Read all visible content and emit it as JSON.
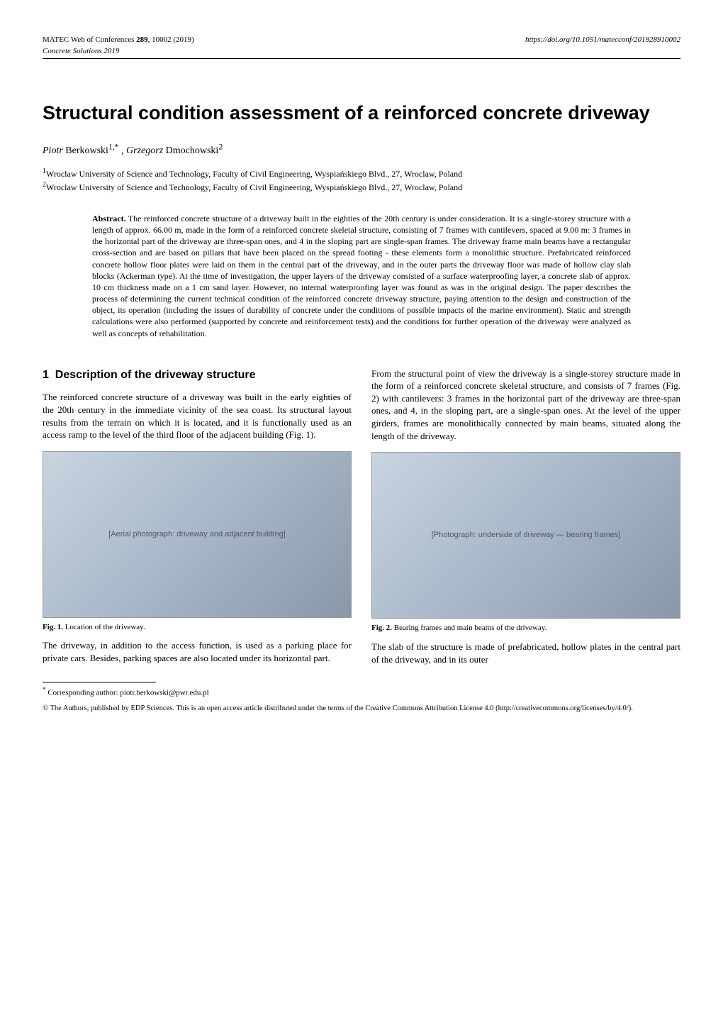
{
  "header": {
    "journal": "MATEC Web of Conferences",
    "volume": "289",
    "article_id": "10002",
    "year": "(2019)",
    "conference_line": "Concrete Solutions 2019",
    "doi": "https://doi.org/10.1051/matecconf/201928910002"
  },
  "title": "Structural condition assessment of a reinforced concrete driveway",
  "authors": [
    {
      "first": "Piotr",
      "last": "Berkowski",
      "sup": "1,*"
    },
    {
      "first": "Grzegorz",
      "last": "Dmochowski",
      "sup": "2"
    }
  ],
  "affiliations": [
    "Wroclaw University of Science and Technology, Faculty of Civil Engineering, Wyspiańskiego Blvd., 27, Wroclaw, Poland",
    "Wroclaw University of Science and Technology, Faculty of Civil Engineering, Wyspiańskiego Blvd., 27, Wroclaw, Poland"
  ],
  "abstract": {
    "label": "Abstract.",
    "text": "The reinforced concrete structure of a driveway built in the eighties of the 20th century is under consideration. It is a single-storey structure with a length of approx. 66.00 m, made in the form of a reinforced concrete skeletal structure, consisting of 7 frames with cantilevers, spaced at 9.00 m: 3 frames in the horizontal part of the driveway are three-span ones, and 4 in the sloping part are single-span frames. The driveway frame main beams have a rectangular cross-section and are based on pillars that have been placed on the spread footing - these elements form a monolithic structure. Prefabricated reinforced concrete hollow floor plates were laid on them in the central part of the driveway, and in the outer parts the driveway floor was made of hollow clay slab blocks (Ackerman type). At the time of investigation, the upper layers of the driveway consisted of a surface waterproofing layer, a concrete slab of approx. 10 cm thickness made on a 1 cm sand layer. However, no internal waterproofing layer was found as was in the original design. The paper describes the process of determining the current technical condition of the reinforced concrete driveway structure, paying attention to the design and construction of the object, its operation (including the issues of durability of concrete under the conditions of possible impacts of the marine environment). Static and strength calculations were also performed (supported by concrete and reinforcement tests) and the conditions for further operation of the driveway were analyzed as well as concepts of rehabilitation."
  },
  "section1": {
    "heading_num": "1",
    "heading_text": "Description of the driveway structure",
    "left_p1": "The reinforced concrete structure of a driveway was built in the early eighties of the 20th century in the immediate vicinity of the sea coast. Its structural layout results from the terrain on which it is located, and it is functionally used as an access ramp to the level of the third floor of the adjacent building (Fig. 1).",
    "left_p2": "The driveway, in addition to the access function, is used as a parking place for private cars. Besides, parking spaces are also located under its horizontal part.",
    "right_p1": "From the structural point of view the driveway is a single-storey structure made in the form of a reinforced concrete skeletal structure, and consists of 7 frames (Fig. 2) with cantilevers: 3 frames in the horizontal part of the driveway are three-span ones, and 4, in the sloping part, are a single-span ones. At the level of the upper girders, frames are monolithically connected by main beams, situated along the length of the driveway.",
    "right_p2": "The slab of the structure is made of prefabricated, hollow plates in the central part of the driveway, and in its outer"
  },
  "figures": {
    "fig1": {
      "label": "Fig. 1.",
      "caption": "Location of the driveway.",
      "alt": "[Aerial photograph: driveway and adjacent building]"
    },
    "fig2": {
      "label": "Fig. 2.",
      "caption": "Bearing frames and main beams of the driveway.",
      "alt": "[Photograph: underside of driveway — bearing frames]"
    }
  },
  "footnote": {
    "marker": "*",
    "text": "Corresponding author: piotr.berkowski@pwr.edu.pl"
  },
  "license": "© The Authors, published by EDP Sciences. This is an open access article distributed under the terms of the Creative Commons Attribution License 4.0 (http://creativecommons.org/licenses/by/4.0/)."
}
